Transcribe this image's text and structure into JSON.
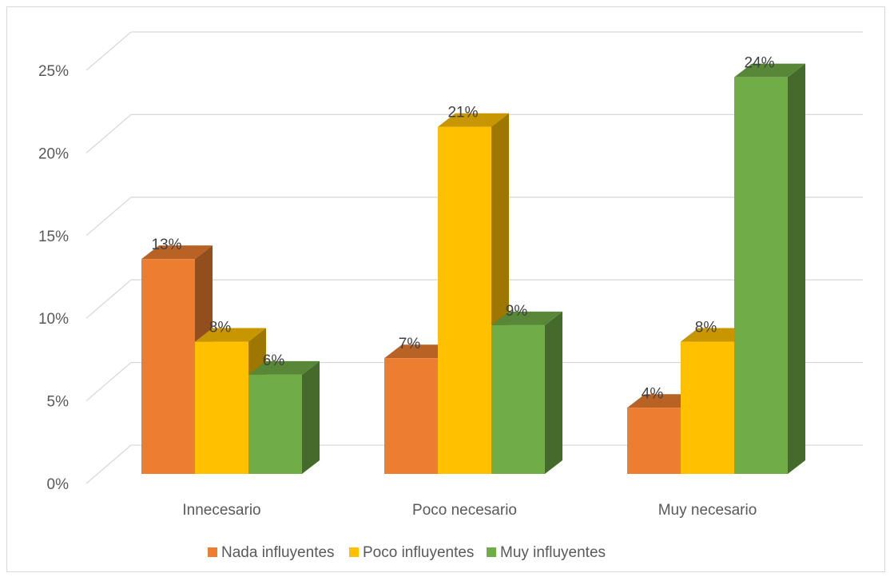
{
  "chart_data": {
    "type": "bar",
    "categories": [
      "Innecesario",
      "Poco necesario",
      "Muy necesario"
    ],
    "series": [
      {
        "name": "Nada influyentes",
        "values": [
          13,
          7,
          4
        ],
        "color": "#ED7D31"
      },
      {
        "name": "Poco influyentes",
        "values": [
          8,
          21,
          8
        ],
        "color": "#FFC000"
      },
      {
        "name": "Muy influyentes",
        "values": [
          6,
          9,
          24
        ],
        "color": "#70AD47"
      }
    ],
    "y_ticks": [
      "0%",
      "5%",
      "10%",
      "15%",
      "20%",
      "25%"
    ],
    "ylim": [
      0,
      25
    ],
    "value_suffix": "%",
    "grid": true,
    "style": "3d-clustered-column",
    "legend_position": "bottom"
  }
}
